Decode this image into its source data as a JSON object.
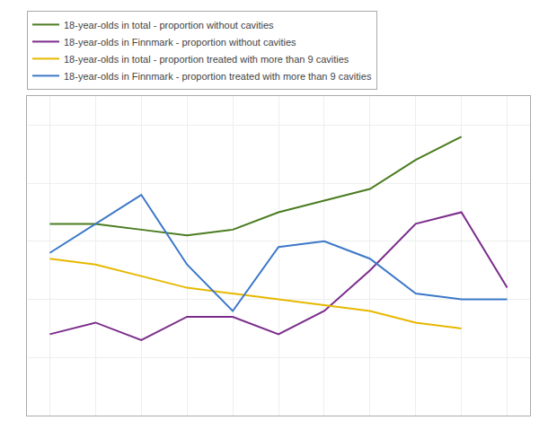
{
  "chart_data": {
    "type": "line",
    "x": [
      1,
      2,
      3,
      4,
      5,
      6,
      7,
      8,
      9,
      10,
      11
    ],
    "series": [
      {
        "name": "18-year-olds in total - proportion without cavities",
        "color": "#4a7c1f",
        "values": [
          33,
          33,
          32,
          31,
          32,
          35,
          37,
          39,
          44,
          48,
          null
        ]
      },
      {
        "name": "18-year-olds in Finnmark - proportion without cavities",
        "color": "#7b2d8b",
        "values": [
          14,
          16,
          13,
          17,
          17,
          14,
          18,
          25,
          33,
          35,
          22
        ]
      },
      {
        "name": "18-year-olds in total - proportion treated with more than 9 cavities",
        "color": "#e6b800",
        "values": [
          27,
          26,
          24,
          22,
          21,
          20,
          19,
          18,
          16,
          15,
          null
        ]
      },
      {
        "name": "18-year-olds in Finnmark - proportion treated with more than 9 cavities",
        "color": "#3c78c8",
        "values": [
          28,
          33,
          38,
          26,
          18,
          29,
          30,
          27,
          21,
          20,
          20
        ]
      }
    ],
    "xlim": [
      0.5,
      11.5
    ],
    "xticks": [
      1,
      2,
      3,
      4,
      5,
      6,
      7,
      8,
      9,
      10,
      11
    ],
    "ylim": [
      0,
      55
    ],
    "yticks": [
      0,
      10,
      20,
      30,
      40,
      50
    ],
    "grid": true,
    "legend": "upper left",
    "tick_labels": false
  }
}
